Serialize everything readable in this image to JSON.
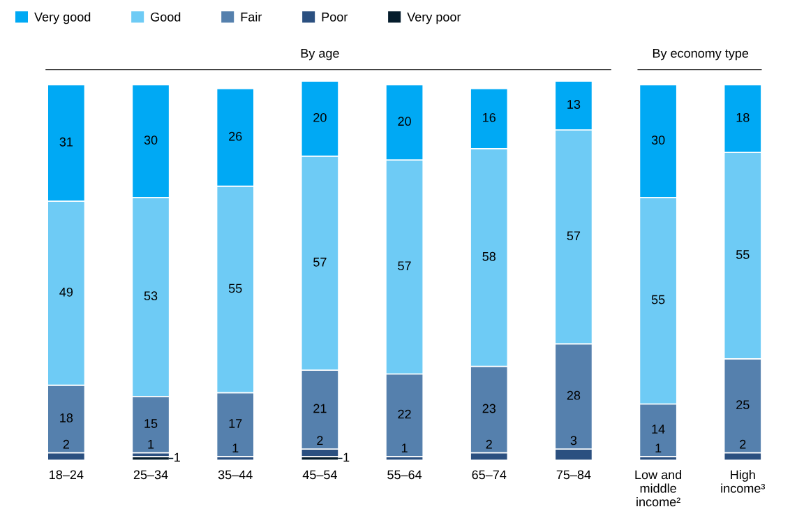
{
  "chart_data": {
    "type": "bar",
    "stacked": true,
    "legend": "top left",
    "grid": false,
    "tick_labels": "x",
    "categories": [
      "18–24",
      "25–34",
      "35–44",
      "45–54",
      "55–64",
      "65–74",
      "75–84",
      "Low and\nmiddle\nincome²",
      "High\nincome³"
    ],
    "series": [
      {
        "name": "Very poor",
        "color": "#051c2c",
        "values": [
          null,
          1,
          null,
          1,
          null,
          null,
          null,
          null,
          null
        ],
        "value_labels": [
          null,
          "1",
          null,
          "1",
          null,
          null,
          null,
          null,
          null
        ]
      },
      {
        "name": "Poor",
        "color": "#2b5080",
        "values": [
          2,
          1,
          1,
          2,
          1,
          2,
          3,
          1,
          2
        ],
        "value_labels": [
          "2",
          "1",
          "1",
          "2",
          "1",
          "2",
          "3",
          "1",
          "2"
        ]
      },
      {
        "name": "Fair",
        "color": "#5580ad",
        "values": [
          18,
          15,
          17,
          21,
          22,
          23,
          28,
          14,
          25
        ],
        "value_labels": [
          "18",
          "15",
          "17",
          "21",
          "22",
          "23",
          "28",
          "14",
          "25"
        ]
      },
      {
        "name": "Good",
        "color": "#6ecbf5",
        "values": [
          49,
          53,
          55,
          57,
          57,
          58,
          57,
          55,
          55
        ],
        "value_labels": [
          "49",
          "53",
          "55",
          "57",
          "57",
          "58",
          "57",
          "55",
          "55"
        ]
      },
      {
        "name": "Very good",
        "color": "#00a9f4",
        "values": [
          31,
          30,
          26,
          20,
          20,
          16,
          13,
          30,
          18
        ],
        "value_labels": [
          "31",
          "30",
          "26",
          "20",
          "20",
          "16",
          "13",
          "30",
          "18"
        ]
      }
    ],
    "annotations": [
      "By age",
      "By economy type"
    ]
  }
}
